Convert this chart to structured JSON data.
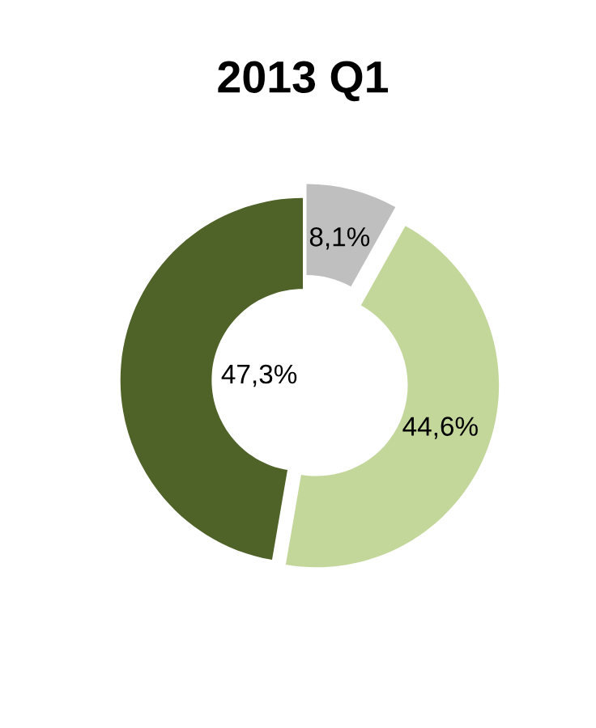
{
  "chart_data": {
    "type": "donut",
    "title": "2013 Q1",
    "categories": [
      null,
      null,
      null
    ],
    "values": [
      8.1,
      44.6,
      47.3
    ],
    "colors": [
      "#bfbfbf",
      "#c4d79b",
      "#4f6228"
    ],
    "value_labels": [
      "8,1%",
      "44,6%",
      "47,3%"
    ]
  }
}
